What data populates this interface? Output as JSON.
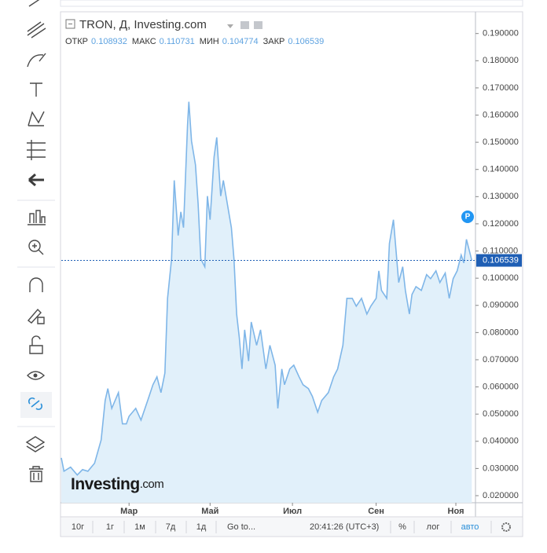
{
  "chart_data": {
    "type": "area",
    "title": "TRON, Д, Investing.com",
    "ohlc": [
      {
        "label": "ОТКР",
        "value": 0.108932
      },
      {
        "label": "МАКС",
        "value": 0.110731
      },
      {
        "label": "МИН",
        "value": 0.104774
      },
      {
        "label": "ЗАКР",
        "value": 0.106539
      }
    ],
    "color": "#7fb6e8",
    "fill": "#e1f0fa",
    "x": [
      0,
      2,
      7,
      12,
      16,
      20,
      25,
      30,
      33,
      35,
      38,
      43,
      46,
      49,
      51,
      56,
      60,
      65,
      69,
      72,
      75,
      78,
      80,
      83,
      85,
      88,
      90,
      92,
      95,
      96,
      98,
      101,
      103,
      105,
      108,
      110,
      112,
      115,
      117,
      120,
      122,
      125,
      128,
      130,
      132,
      134,
      136,
      138,
      141,
      143,
      147,
      150,
      154,
      157,
      161,
      163,
      166,
      168,
      172,
      175,
      179,
      182,
      186,
      189,
      193,
      196,
      201,
      205,
      208,
      212,
      215,
      219,
      222,
      226,
      230,
      233,
      237,
      239,
      241,
      245,
      247,
      250,
      252,
      254,
      257,
      259,
      262,
      264,
      267,
      271,
      275,
      278,
      282,
      285,
      289,
      292,
      295,
      298,
      301,
      303,
      305,
      308,
      309
    ],
    "values": [
      0.0339,
      0.029,
      0.0305,
      0.0276,
      0.0296,
      0.029,
      0.0319,
      0.0405,
      0.055,
      0.0594,
      0.0521,
      0.0579,
      0.0464,
      0.0464,
      0.0492,
      0.0521,
      0.0478,
      0.055,
      0.0608,
      0.0637,
      0.0579,
      0.0651,
      0.0926,
      0.1071,
      0.136,
      0.1157,
      0.1244,
      0.1186,
      0.1562,
      0.1649,
      0.1504,
      0.1417,
      0.1273,
      0.1071,
      0.1042,
      0.1302,
      0.1215,
      0.1446,
      0.1518,
      0.1302,
      0.136,
      0.1273,
      0.1186,
      0.1071,
      0.0868,
      0.0781,
      0.0666,
      0.081,
      0.0695,
      0.0839,
      0.0753,
      0.081,
      0.0666,
      0.0753,
      0.068,
      0.0521,
      0.0666,
      0.0608,
      0.0666,
      0.068,
      0.0637,
      0.0608,
      0.0594,
      0.0565,
      0.0507,
      0.055,
      0.0579,
      0.0637,
      0.0666,
      0.0753,
      0.0926,
      0.0926,
      0.0897,
      0.0926,
      0.0868,
      0.0897,
      0.0926,
      0.1027,
      0.0955,
      0.0926,
      0.1128,
      0.1215,
      0.1099,
      0.0984,
      0.1042,
      0.0955,
      0.0868,
      0.094,
      0.0969,
      0.0955,
      0.1013,
      0.0998,
      0.1027,
      0.0984,
      0.1019,
      0.0926,
      0.0998,
      0.1027,
      0.1085,
      0.1056,
      0.1143,
      0.1085,
      0.1065
    ],
    "last_price": 0.106539,
    "xlim": [
      0,
      310
    ],
    "ylim": [
      0.0174,
      0.198
    ],
    "xticks": [
      {
        "value": 51,
        "label": "Мар"
      },
      {
        "value": 112,
        "label": "Май"
      },
      {
        "value": 174,
        "label": "Июл"
      },
      {
        "value": 237,
        "label": "Сен"
      },
      {
        "value": 297,
        "label": "Ноя"
      }
    ],
    "yticks": [
      {
        "value": 0.02,
        "label": "0.020000"
      },
      {
        "value": 0.03,
        "label": "0.030000"
      },
      {
        "value": 0.04,
        "label": "0.040000"
      },
      {
        "value": 0.05,
        "label": "0.050000"
      },
      {
        "value": 0.06,
        "label": "0.060000"
      },
      {
        "value": 0.07,
        "label": "0.070000"
      },
      {
        "value": 0.08,
        "label": "0.080000"
      },
      {
        "value": 0.09,
        "label": "0.090000"
      },
      {
        "value": 0.1,
        "label": "0.100000"
      },
      {
        "value": 0.11,
        "label": "0.110000"
      },
      {
        "value": 0.12,
        "label": "0.120000"
      },
      {
        "value": 0.13,
        "label": "0.130000"
      },
      {
        "value": 0.14,
        "label": "0.140000"
      },
      {
        "value": 0.15,
        "label": "0.150000"
      },
      {
        "value": 0.16,
        "label": "0.160000"
      },
      {
        "value": 0.17,
        "label": "0.170000"
      },
      {
        "value": 0.18,
        "label": "0.180000"
      },
      {
        "value": 0.19,
        "label": "0.190000"
      }
    ],
    "marker": "P",
    "watermark": "Investing",
    "watermark_suffix": ".com"
  },
  "bottom_bar": {
    "ranges": [
      "10г",
      "1г",
      "1м",
      "7д",
      "1д"
    ],
    "goto": "Go to...",
    "time": "20:41:26 (UTC+3)",
    "options": [
      "%",
      "лог",
      "авто"
    ]
  }
}
